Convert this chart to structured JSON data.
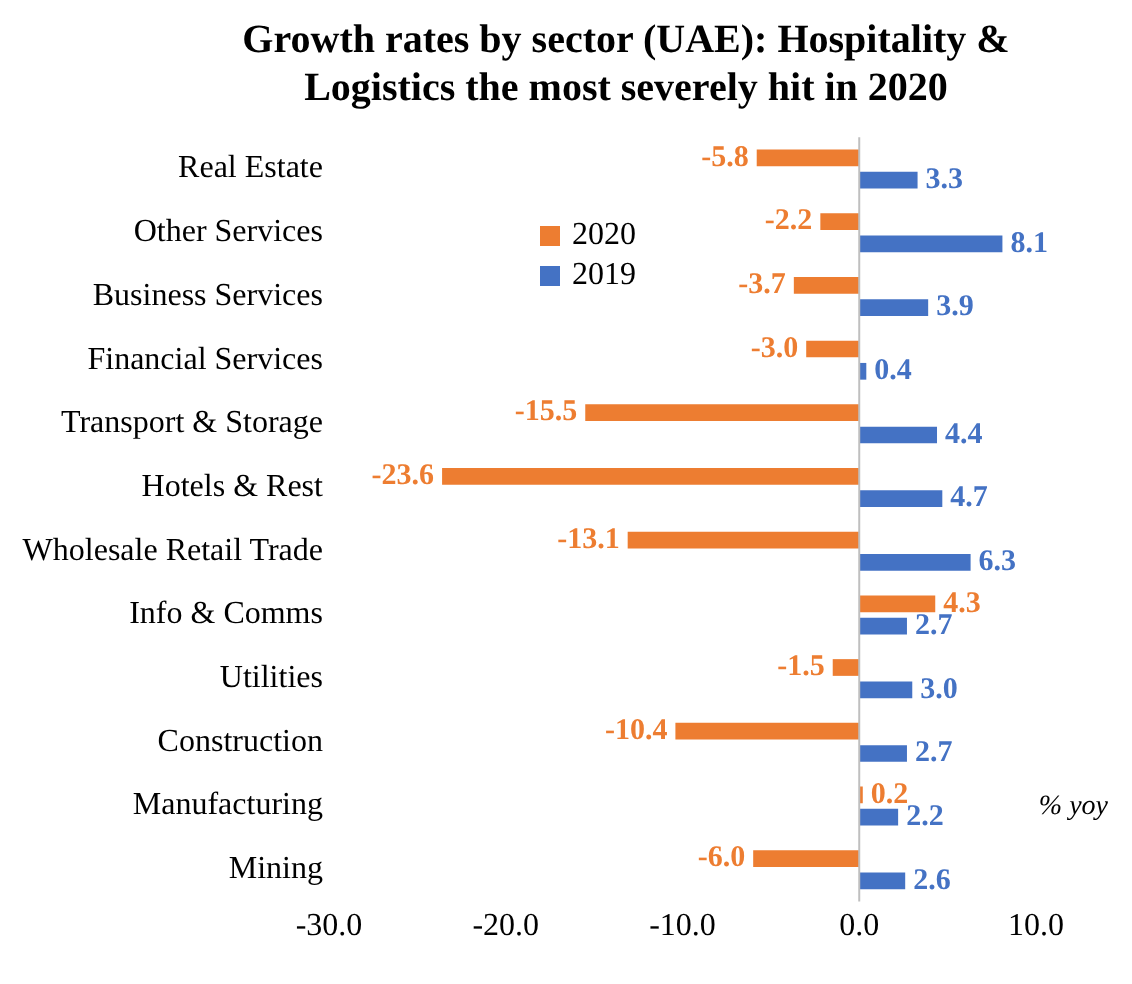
{
  "chart_data": {
    "type": "bar",
    "orientation": "horizontal",
    "title": "Growth rates by sector (UAE): Hospitality & Logistics the most severely hit in 2020",
    "categories": [
      "Real Estate",
      "Other Services",
      "Business Services",
      "Financial Services",
      "Transport & Storage",
      "Hotels & Rest",
      "Wholesale Retail Trade",
      "Info & Comms",
      "Utilities",
      "Construction",
      "Manufacturing",
      "Mining"
    ],
    "series": [
      {
        "name": "2020",
        "color": "#ed7d31",
        "values": [
          -5.8,
          -2.2,
          -3.7,
          -3.0,
          -15.5,
          -23.6,
          -13.1,
          4.3,
          -1.5,
          -10.4,
          0.2,
          -6.0
        ],
        "value_labels": [
          "-5.8",
          "-2.2",
          "-3.7",
          "-3.0",
          "-15.5",
          "-23.6",
          "-13.1",
          "4.3",
          "-1.5",
          "-10.4",
          "0.2",
          "-6.0"
        ]
      },
      {
        "name": "2019",
        "color": "#4472c4",
        "values": [
          3.3,
          8.1,
          3.9,
          0.4,
          4.4,
          4.7,
          6.3,
          2.7,
          3.0,
          2.7,
          2.2,
          2.6
        ],
        "value_labels": [
          "3.3",
          "8.1",
          "3.9",
          "0.4",
          "4.4",
          "4.7",
          "6.3",
          "2.7",
          "3.0",
          "2.7",
          "2.2",
          "2.6"
        ]
      }
    ],
    "ref_lines": [
      {
        "axis": "x",
        "value": 0,
        "color": "#bfbfbf"
      }
    ],
    "xlim": [
      -30,
      10
    ],
    "xticks": [
      {
        "value": -30,
        "label": "-30.0"
      },
      {
        "value": -20,
        "label": "-20.0"
      },
      {
        "value": -10,
        "label": "-10.0"
      },
      {
        "value": 0,
        "label": "0.0"
      },
      {
        "value": 10,
        "label": "10.0"
      }
    ],
    "legend": "top left",
    "annotations": [
      "% yoy"
    ]
  }
}
